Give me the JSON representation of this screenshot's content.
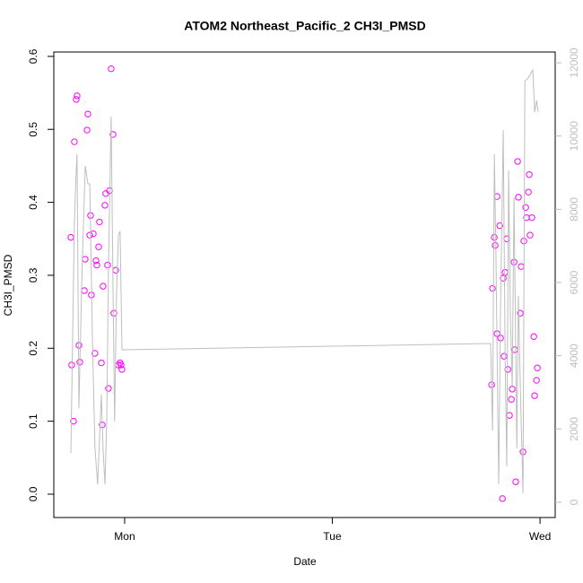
{
  "chart_data": {
    "type": "scatter",
    "title": "ATOM2 Northeast_Pacific_2 CH3I_PMSD",
    "xlabel": "Date",
    "ylabel": "CH3I_PMSD",
    "xlim": [
      0.659,
      3.073
    ],
    "xticks": [
      {
        "value": 1,
        "label": "Mon"
      },
      {
        "value": 2,
        "label": "Tue"
      },
      {
        "value": 3,
        "label": "Wed"
      }
    ],
    "ylim": [
      -0.032,
      0.606
    ],
    "yticks": [
      {
        "value": 0,
        "label": "0.0"
      },
      0.1,
      0.2,
      0.3,
      0.4,
      0.5,
      0.6
    ],
    "y2lim": [
      -416,
      12294
    ],
    "y2ticks": [
      0,
      2000,
      4000,
      6000,
      8000,
      10000,
      12000
    ],
    "series": [
      {
        "type": "scatter",
        "color": "#ff00ff",
        "x": [
          0.741,
          0.745,
          0.754,
          0.758,
          0.767,
          0.771,
          0.78,
          0.784,
          0.806,
          0.81,
          0.819,
          0.823,
          0.832,
          0.836,
          0.84,
          0.849,
          0.857,
          0.862,
          0.866,
          0.875,
          0.879,
          0.888,
          0.892,
          0.896,
          0.905,
          0.909,
          0.918,
          0.922,
          0.927,
          0.935,
          0.944,
          0.948,
          0.957,
          0.97,
          0.978,
          0.983,
          0.987,
          2.767,
          2.771,
          2.78,
          2.784,
          2.793,
          2.793,
          2.806,
          2.81,
          2.819,
          2.823,
          2.827,
          2.832,
          2.84,
          2.845,
          2.853,
          2.862,
          2.866,
          2.875,
          2.879,
          2.883,
          2.892,
          2.896,
          2.905,
          2.909,
          2.918,
          2.922,
          2.931,
          2.935,
          2.944,
          2.948,
          2.952,
          2.961,
          2.97,
          2.974,
          2.983,
          2.987
        ],
        "values": [
          0.352,
          0.177,
          0.1,
          0.483,
          0.541,
          0.546,
          0.204,
          0.181,
          0.279,
          0.322,
          0.499,
          0.521,
          0.355,
          0.382,
          0.273,
          0.357,
          0.193,
          0.32,
          0.314,
          0.339,
          0.373,
          0.18,
          0.095,
          0.285,
          0.396,
          0.412,
          0.314,
          0.145,
          0.416,
          0.583,
          0.493,
          0.248,
          0.307,
          0.177,
          0.18,
          0.177,
          0.171,
          0.15,
          0.282,
          0.352,
          0.341,
          0.408,
          0.22,
          0.368,
          0.214,
          -0.006,
          0.296,
          0.189,
          0.304,
          0.35,
          0.171,
          0.108,
          0.13,
          0.144,
          0.318,
          0.198,
          0.017,
          0.456,
          0.407,
          0.248,
          0.312,
          0.058,
          0.347,
          0.393,
          0.379,
          0.414,
          0.438,
          0.355,
          0.379,
          0.216,
          0.135,
          0.156,
          0.173
        ]
      },
      {
        "type": "line",
        "axis": "y2",
        "color": "#bebebe",
        "x": [
          0.741,
          0.758,
          0.767,
          0.771,
          0.78,
          0.793,
          0.81,
          0.823,
          0.832,
          0.845,
          0.857,
          0.87,
          0.879,
          0.888,
          0.896,
          0.905,
          0.914,
          0.922,
          0.935,
          0.944,
          0.952,
          0.961,
          0.97,
          0.978,
          0.987,
          0.996,
          2.754,
          2.762,
          2.771,
          2.78,
          2.788,
          2.801,
          2.81,
          2.823,
          2.832,
          2.84,
          2.849,
          2.857,
          2.866,
          2.875,
          2.888,
          2.896,
          2.905,
          2.918,
          2.927,
          2.94,
          2.965,
          2.974,
          2.983,
          2.991
        ],
        "values": [
          1347,
          7592,
          9062,
          9503,
          2572,
          5878,
          9185,
          8695,
          8695,
          4408,
          1470,
          490,
          1714,
          2939,
          1470,
          490,
          2204,
          6368,
          10531,
          5878,
          2204,
          5633,
          7298,
          7396,
          4163,
          4163,
          4335,
          4335,
          1959,
          9503,
          6613,
          490,
          5388,
          10164,
          3919,
          980,
          9062,
          5143,
          3184,
          8328,
          1470,
          5633,
          3184,
          245,
          11511,
          11560,
          11805,
          10654,
          10972,
          10654
        ]
      }
    ]
  }
}
